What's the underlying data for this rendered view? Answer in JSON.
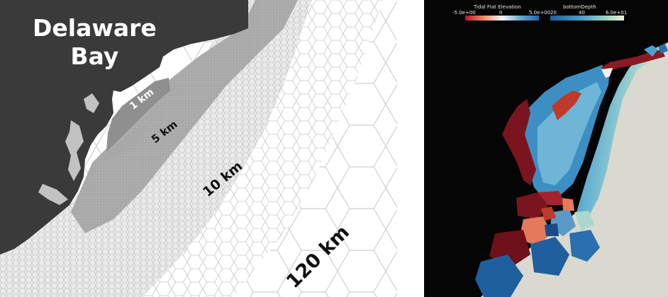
{
  "left_map": {
    "title_line1": "Delaware",
    "title_line2": "Bay",
    "resolution_labels": [
      "1 km",
      "5 km",
      "10 km",
      "120 km"
    ],
    "colors": {
      "land": "#3a3a3a",
      "mesh_line": "#d4d4d4",
      "fine_band": "#8f8f8f"
    }
  },
  "right_map": {
    "colorbar_left": {
      "title": "Tidal Flat Elevation",
      "tick_labels": [
        "-5.0e+00",
        "0",
        "5.0e+00"
      ]
    },
    "colorbar_right": {
      "title": "bottomDepth",
      "tick_labels": [
        "20",
        "40",
        "6.0e+01"
      ]
    },
    "colors": {
      "background": "#050505",
      "open_ocean": "#d9d9cf"
    }
  }
}
